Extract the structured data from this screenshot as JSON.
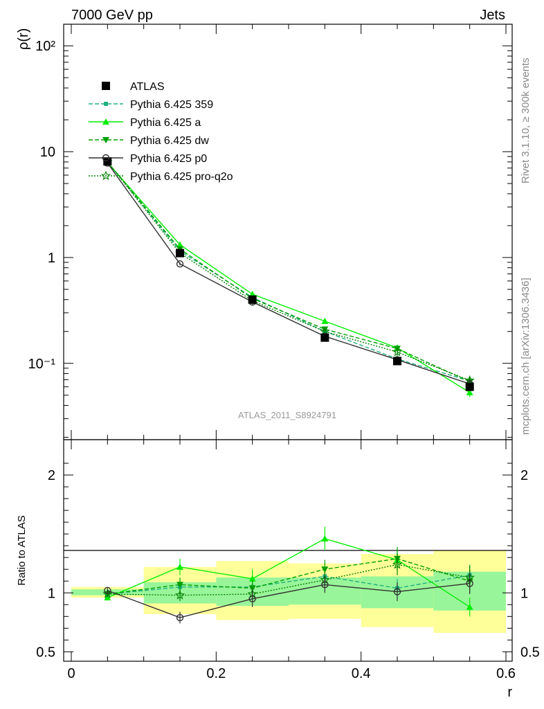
{
  "header": {
    "left_title": "7000 GeV pp",
    "right_title": "Jets"
  },
  "side_labels": {
    "rivet": "Rivet 3.1.10, ≥ 300k events",
    "mcplots": "mcplots.cern.ch [arXiv:1306.3436]"
  },
  "colors": {
    "atlas": "#000000",
    "p359": "#20b080",
    "pa": "#00ee00",
    "pdw": "#00a000",
    "pp0": "#303030",
    "pq2o": "#008000",
    "band_yellow": "#ffff99",
    "band_green": "#99f599"
  },
  "chart_data": [
    {
      "type": "line",
      "title": "",
      "xlabel": "r",
      "ylabel": "ρ(r)",
      "yscale": "log",
      "xlim": [
        0,
        0.6
      ],
      "ylim": [
        0.019,
        160
      ],
      "watermark": "ATLAS_2011_S8924791",
      "y_tick_labels": [
        "10⁻¹",
        "1",
        "10",
        "10²"
      ],
      "y_tick_values": [
        0.1,
        1,
        10,
        100
      ],
      "x": [
        0.05,
        0.15,
        0.25,
        0.35,
        0.45,
        0.55
      ],
      "series": [
        {
          "key": "atlas",
          "name": "ATLAS",
          "values": [
            8.1,
            1.1,
            0.4,
            0.175,
            0.105,
            0.06
          ],
          "errors": [
            0.3,
            0.04,
            0.02,
            0.01,
            0.006,
            0.004
          ],
          "marker": "square",
          "dash": "none"
        },
        {
          "key": "p359",
          "name": "Pythia 6.425 359",
          "values": [
            8.0,
            1.15,
            0.42,
            0.2,
            0.11,
            0.068
          ],
          "errors": [
            0.1,
            0.03,
            0.015,
            0.01,
            0.008,
            0.006
          ],
          "marker": "smallsquare",
          "dash": "6,3"
        },
        {
          "key": "pa",
          "name": "Pythia 6.425 a",
          "values": [
            7.9,
            1.32,
            0.45,
            0.25,
            0.14,
            0.053
          ],
          "errors": [
            0.1,
            0.05,
            0.02,
            0.015,
            0.01,
            0.005
          ],
          "marker": "triangle-up",
          "dash": "none"
        },
        {
          "key": "pdw",
          "name": "Pythia 6.425 dw",
          "values": [
            8.0,
            1.2,
            0.41,
            0.21,
            0.138,
            0.067
          ],
          "errors": [
            0.1,
            0.04,
            0.02,
            0.012,
            0.01,
            0.006
          ],
          "marker": "triangle-down",
          "dash": "6,3"
        },
        {
          "key": "pp0",
          "name": "Pythia 6.425 p0",
          "values": [
            7.8,
            0.87,
            0.38,
            0.18,
            0.108,
            0.064
          ],
          "errors": [
            0.1,
            0.03,
            0.02,
            0.012,
            0.008,
            0.006
          ],
          "marker": "circle",
          "dash": "none"
        },
        {
          "key": "pq2o",
          "name": "Pythia 6.425 pro-q2o",
          "values": [
            8.0,
            1.1,
            0.39,
            0.2,
            0.128,
            0.069
          ],
          "errors": [
            0.1,
            0.035,
            0.018,
            0.012,
            0.01,
            0.006
          ],
          "marker": "star",
          "dash": "2,2"
        }
      ],
      "legend_position": "top-left"
    },
    {
      "type": "line",
      "title": "",
      "xlabel": "r",
      "ylabel": "Ratio to ATLAS",
      "xlim": [
        0,
        0.6
      ],
      "ylim": [
        0.42,
        2.3
      ],
      "x_tick_labels": [
        "0",
        "0.2",
        "0.4",
        "0.6"
      ],
      "x_tick_values": [
        0,
        0.2,
        0.4,
        0.6
      ],
      "y_tick_labels": [
        "0.5",
        "1",
        "2"
      ],
      "y_tick_values": [
        0.5,
        1,
        2
      ],
      "bins": [
        [
          0.0,
          0.1
        ],
        [
          0.1,
          0.2
        ],
        [
          0.2,
          0.3
        ],
        [
          0.3,
          0.4
        ],
        [
          0.4,
          0.5
        ],
        [
          0.5,
          0.6
        ]
      ],
      "band_yellow": [
        [
          0.96,
          1.05
        ],
        [
          0.82,
          1.22
        ],
        [
          0.77,
          1.27
        ],
        [
          0.78,
          1.25
        ],
        [
          0.71,
          1.33
        ],
        [
          0.66,
          1.36
        ]
      ],
      "band_green": [
        [
          0.98,
          1.03
        ],
        [
          0.91,
          1.09
        ],
        [
          0.89,
          1.13
        ],
        [
          0.9,
          1.13
        ],
        [
          0.87,
          1.14
        ],
        [
          0.85,
          1.18
        ]
      ],
      "x": [
        0.05,
        0.15,
        0.25,
        0.35,
        0.45,
        0.55
      ],
      "series": [
        {
          "key": "p359",
          "name": "Pythia 6.425 359",
          "values": [
            0.99,
            1.05,
            1.05,
            1.14,
            1.04,
            1.15
          ],
          "errors": [
            0.02,
            0.05,
            0.06,
            0.07,
            0.08,
            0.09
          ]
        },
        {
          "key": "pa",
          "name": "Pythia 6.425 a",
          "values": [
            0.96,
            1.22,
            1.12,
            1.46,
            1.28,
            0.88
          ],
          "errors": [
            0.02,
            0.07,
            0.08,
            0.1,
            0.09,
            0.08
          ]
        },
        {
          "key": "pdw",
          "name": "Pythia 6.425 dw",
          "values": [
            0.99,
            1.07,
            1.04,
            1.2,
            1.29,
            1.1
          ],
          "errors": [
            0.02,
            0.06,
            0.07,
            0.08,
            0.1,
            0.1
          ]
        },
        {
          "key": "pp0",
          "name": "Pythia 6.425 p0",
          "values": [
            1.02,
            0.79,
            0.95,
            1.07,
            1.01,
            1.08
          ],
          "errors": [
            0.02,
            0.05,
            0.07,
            0.07,
            0.08,
            0.09
          ]
        },
        {
          "key": "pq2o",
          "name": "Pythia 6.425 pro-q2o",
          "values": [
            0.99,
            0.98,
            0.99,
            1.11,
            1.24,
            1.13
          ],
          "errors": [
            0.02,
            0.05,
            0.06,
            0.07,
            0.09,
            0.1
          ]
        }
      ]
    }
  ]
}
